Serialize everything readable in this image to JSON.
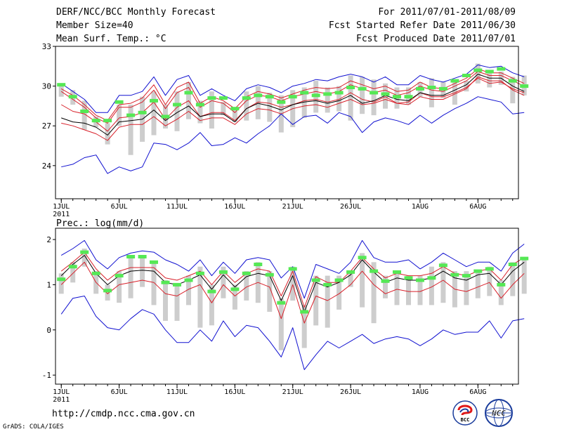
{
  "header": {
    "title": "DERF/NCC/BCC Monthly Forecast",
    "member_size": "Member Size=40",
    "variable": "Mean Surf. Temp.: °C",
    "for_range": "For 2011/07/01-2011/08/09",
    "fcst_started": "Fcst Started Refer Date 2011/06/30",
    "fcst_produced": "Fcst Produced Date 2011/07/01"
  },
  "footer": {
    "url": "http://cmdp.ncc.cma.gov.cn",
    "credit": "GrADS: COLA/IGES",
    "logo_left_text": "BCC",
    "logo_right_text": "NCC"
  },
  "colors": {
    "box": "#cdcdcd",
    "mean_marker": "#55e855",
    "ensemble_mean": "#000000",
    "inner_band": "#d8202a",
    "outer_band": "#1010d0"
  },
  "chart_data": [
    {
      "type": "line",
      "name": "temperature",
      "ylabel": "Mean Surf. Temp. (°C)",
      "ylim": [
        21.5,
        33
      ],
      "yticks": [
        24,
        27,
        30,
        33
      ],
      "xlim": [
        0.5,
        40.5
      ],
      "x_ticks": [
        {
          "day": 1,
          "label": "1JUL"
        },
        {
          "day": 6,
          "label": "6JUL"
        },
        {
          "day": 11,
          "label": "11JUL"
        },
        {
          "day": 16,
          "label": "16JUL"
        },
        {
          "day": 21,
          "label": "21JUL"
        },
        {
          "day": 26,
          "label": "26JUL"
        },
        {
          "day": 32,
          "label": "1AUG"
        },
        {
          "day": 37,
          "label": "6AUG"
        }
      ],
      "year_label": "2011",
      "series": [
        {
          "name": "blue-upper",
          "values": [
            30.2,
            29.6,
            29.0,
            28.0,
            28.0,
            29.3,
            29.3,
            29.6,
            30.7,
            29.3,
            30.5,
            30.8,
            29.3,
            29.8,
            29.3,
            28.9,
            29.8,
            30.1,
            29.9,
            29.5,
            30.0,
            30.2,
            30.5,
            30.4,
            30.7,
            30.9,
            30.7,
            30.3,
            30.7,
            30.1,
            30.1,
            30.8,
            30.5,
            30.3,
            30.6,
            30.9,
            31.6,
            31.4,
            31.5,
            31.0,
            30.7
          ]
        },
        {
          "name": "red-upper",
          "values": [
            29.8,
            29.3,
            28.6,
            27.8,
            27.4,
            28.6,
            28.7,
            29.1,
            30.1,
            28.6,
            29.9,
            30.3,
            28.7,
            29.2,
            28.9,
            28.3,
            29.2,
            29.6,
            29.4,
            29.1,
            29.4,
            29.7,
            29.9,
            29.8,
            29.9,
            30.4,
            30.1,
            29.8,
            30.0,
            29.6,
            29.7,
            30.3,
            29.9,
            29.8,
            30.2,
            30.6,
            31.3,
            31.0,
            31.0,
            30.6,
            30.2
          ]
        },
        {
          "name": "red-upper2",
          "values": [
            29.6,
            29.0,
            28.4,
            27.6,
            27.2,
            28.4,
            28.4,
            28.8,
            29.7,
            28.3,
            29.5,
            29.9,
            28.4,
            28.9,
            28.7,
            28.0,
            28.9,
            29.3,
            29.2,
            28.9,
            29.2,
            29.4,
            29.6,
            29.4,
            29.6,
            30.1,
            29.8,
            29.5,
            29.7,
            29.3,
            29.5,
            30.0,
            29.7,
            29.6,
            30.0,
            30.4,
            31.1,
            30.8,
            30.8,
            30.4,
            30.0
          ]
        },
        {
          "name": "red-lower",
          "values": [
            28.6,
            28.1,
            27.9,
            27.3,
            26.6,
            27.6,
            27.7,
            28.0,
            28.8,
            27.5,
            28.4,
            28.9,
            27.7,
            28.0,
            28.0,
            27.4,
            28.3,
            28.8,
            28.7,
            28.4,
            28.6,
            28.9,
            29.0,
            28.8,
            29.0,
            29.5,
            29.0,
            28.8,
            29.2,
            28.7,
            28.8,
            29.5,
            29.2,
            29.2,
            29.5,
            29.9,
            30.6,
            30.2,
            30.3,
            29.8,
            29.5
          ]
        },
        {
          "name": "black-mean",
          "values": [
            27.6,
            27.3,
            27.2,
            26.9,
            26.3,
            27.3,
            27.4,
            27.5,
            28.2,
            27.4,
            28.0,
            28.5,
            27.7,
            27.9,
            27.9,
            27.3,
            28.3,
            28.7,
            28.5,
            28.2,
            28.6,
            28.8,
            28.9,
            28.7,
            28.9,
            29.3,
            28.7,
            28.9,
            29.3,
            29.0,
            28.9,
            29.5,
            29.3,
            29.3,
            29.7,
            30.1,
            30.9,
            30.6,
            30.6,
            30.0,
            29.6
          ]
        },
        {
          "name": "red-lowest",
          "values": [
            27.2,
            27.0,
            26.7,
            26.4,
            25.9,
            26.9,
            27.1,
            27.1,
            27.7,
            27.0,
            27.5,
            28.1,
            27.4,
            27.6,
            27.6,
            27.1,
            27.9,
            28.3,
            28.2,
            27.9,
            28.3,
            28.5,
            28.6,
            28.4,
            28.7,
            29.0,
            28.6,
            28.7,
            29.0,
            28.7,
            28.6,
            29.2,
            29.0,
            29.0,
            29.4,
            29.8,
            30.7,
            30.4,
            30.4,
            29.7,
            29.3
          ]
        },
        {
          "name": "blue-lower",
          "values": [
            23.9,
            24.1,
            24.6,
            24.8,
            23.4,
            23.9,
            23.6,
            23.9,
            25.7,
            25.6,
            25.2,
            25.7,
            26.5,
            25.5,
            25.6,
            26.1,
            25.7,
            26.4,
            27.0,
            27.9,
            27.1,
            27.7,
            27.8,
            27.2,
            28.0,
            27.7,
            26.5,
            27.3,
            27.6,
            27.4,
            27.1,
            27.8,
            27.2,
            27.8,
            28.3,
            28.7,
            29.2,
            29.0,
            28.8,
            27.9,
            28.0
          ]
        }
      ],
      "boxes": {
        "top": [
          30.1,
          29.7,
          28.9,
          27.7,
          27.2,
          28.6,
          28.6,
          29.2,
          29.6,
          28.6,
          29.6,
          30.3,
          28.9,
          29.6,
          28.8,
          28.4,
          29.6,
          30.0,
          29.5,
          29.3,
          29.7,
          29.9,
          30.4,
          29.9,
          30.0,
          30.8,
          30.7,
          30.5,
          30.2,
          29.9,
          29.9,
          30.3,
          30.6,
          30.3,
          30.4,
          30.4,
          31.7,
          31.1,
          31.1,
          30.7,
          30.8
        ],
        "bottom": [
          29.2,
          28.6,
          26.7,
          26.9,
          25.6,
          27.0,
          24.8,
          25.8,
          26.3,
          26.8,
          26.6,
          27.5,
          27.2,
          26.8,
          27.8,
          27.3,
          27.4,
          27.5,
          27.3,
          26.5,
          26.9,
          27.6,
          28.0,
          28.0,
          28.1,
          27.4,
          27.9,
          27.8,
          28.3,
          28.3,
          28.6,
          29.2,
          28.4,
          29.1,
          28.6,
          29.6,
          30.2,
          29.9,
          30.1,
          28.7,
          29.3
        ]
      },
      "markers": [
        30.1,
        29.2,
        28.1,
        27.4,
        27.4,
        28.8,
        27.8,
        28.0,
        28.9,
        27.7,
        28.6,
        29.5,
        28.6,
        29.1,
        29.1,
        28.3,
        29.1,
        29.3,
        29.2,
        28.8,
        29.2,
        29.5,
        29.3,
        29.4,
        29.5,
        29.9,
        29.8,
        29.5,
        29.4,
        29.2,
        29.2,
        29.8,
        29.9,
        29.8,
        30.4,
        30.8,
        31.2,
        31.1,
        31.3,
        30.4,
        30.0
      ]
    },
    {
      "type": "line",
      "name": "precipitation",
      "ylabel": "Prec.: log(mm/d)",
      "ylim": [
        -1.2,
        2.25
      ],
      "yticks": [
        -1,
        0,
        1,
        2
      ],
      "xlim": [
        0.5,
        40.5
      ],
      "x_ticks": [
        {
          "day": 1,
          "label": "1JUL"
        },
        {
          "day": 6,
          "label": "6JUL"
        },
        {
          "day": 11,
          "label": "11JUL"
        },
        {
          "day": 16,
          "label": "16JUL"
        },
        {
          "day": 21,
          "label": "21JUL"
        },
        {
          "day": 26,
          "label": "26JUL"
        },
        {
          "day": 32,
          "label": "1AUG"
        },
        {
          "day": 37,
          "label": "6AUG"
        }
      ],
      "year_label": "2011",
      "series": [
        {
          "name": "blue-upper",
          "values": [
            1.65,
            1.8,
            1.98,
            1.55,
            1.35,
            1.6,
            1.7,
            1.75,
            1.72,
            1.55,
            1.45,
            1.3,
            1.55,
            1.2,
            1.5,
            1.25,
            1.55,
            1.6,
            1.55,
            1.15,
            1.4,
            0.7,
            1.45,
            1.35,
            1.25,
            1.5,
            1.98,
            1.6,
            1.5,
            1.5,
            1.55,
            1.35,
            1.5,
            1.7,
            1.55,
            1.4,
            1.5,
            1.5,
            1.3,
            1.7,
            1.9
          ]
        },
        {
          "name": "red-upper",
          "values": [
            1.3,
            1.5,
            1.72,
            1.35,
            1.1,
            1.3,
            1.38,
            1.38,
            1.38,
            1.15,
            1.1,
            1.2,
            1.3,
            1.0,
            1.3,
            1.05,
            1.25,
            1.35,
            1.3,
            0.75,
            1.3,
            0.5,
            1.18,
            1.05,
            1.05,
            1.3,
            1.6,
            1.35,
            1.15,
            1.25,
            1.2,
            1.2,
            1.25,
            1.4,
            1.25,
            1.2,
            1.3,
            1.35,
            1.1,
            1.45,
            1.6
          ]
        },
        {
          "name": "black-mean",
          "values": [
            1.2,
            1.45,
            1.65,
            1.25,
            1.0,
            1.2,
            1.3,
            1.32,
            1.3,
            1.05,
            1.0,
            1.1,
            1.22,
            0.9,
            1.22,
            0.95,
            1.18,
            1.25,
            1.2,
            0.65,
            1.2,
            0.4,
            1.05,
            0.95,
            1.05,
            1.22,
            1.55,
            1.28,
            1.05,
            1.15,
            1.1,
            1.1,
            1.15,
            1.3,
            1.15,
            1.1,
            1.22,
            1.25,
            1.0,
            1.3,
            1.5
          ]
        },
        {
          "name": "red-lower",
          "values": [
            1.0,
            1.25,
            1.5,
            1.05,
            0.8,
            1.0,
            1.05,
            1.1,
            1.05,
            0.8,
            0.75,
            0.9,
            1.0,
            0.6,
            1.0,
            0.75,
            0.95,
            1.05,
            0.95,
            0.25,
            1.0,
            0.15,
            0.75,
            0.65,
            0.8,
            1.0,
            1.3,
            1.0,
            0.8,
            0.9,
            0.85,
            0.85,
            0.95,
            1.1,
            0.9,
            0.85,
            0.95,
            1.05,
            0.7,
            1.0,
            1.25
          ]
        },
        {
          "name": "blue-lower",
          "values": [
            0.35,
            0.7,
            0.75,
            0.3,
            0.05,
            0.0,
            0.25,
            0.45,
            0.35,
            0.0,
            -0.28,
            -0.28,
            0.0,
            -0.25,
            0.2,
            -0.15,
            0.1,
            0.05,
            -0.25,
            -0.6,
            0.05,
            -0.88,
            -0.55,
            -0.25,
            -0.4,
            -0.25,
            -0.1,
            -0.3,
            -0.2,
            -0.15,
            -0.2,
            -0.35,
            -0.2,
            0.0,
            -0.1,
            -0.05,
            -0.05,
            0.2,
            -0.18,
            0.2,
            0.25
          ]
        }
      ],
      "boxes": {
        "top": [
          1.25,
          1.5,
          1.8,
          1.3,
          1.0,
          1.3,
          1.6,
          1.6,
          1.5,
          1.1,
          1.0,
          1.2,
          1.4,
          1.0,
          1.4,
          1.0,
          1.3,
          1.5,
          1.3,
          0.7,
          1.4,
          0.55,
          1.2,
          1.2,
          1.2,
          1.3,
          1.7,
          1.5,
          1.2,
          1.3,
          1.2,
          1.2,
          1.4,
          1.5,
          1.3,
          1.3,
          1.3,
          1.4,
          1.1,
          1.5,
          1.6
        ],
        "bottom": [
          0.8,
          1.05,
          1.4,
          0.8,
          0.65,
          0.6,
          0.7,
          0.95,
          0.55,
          0.2,
          0.2,
          0.55,
          0.05,
          0.1,
          0.7,
          0.45,
          0.65,
          0.6,
          0.4,
          -0.45,
          0.65,
          -0.4,
          0.1,
          0.05,
          0.45,
          0.95,
          0.5,
          0.15,
          0.7,
          0.55,
          0.55,
          0.55,
          0.55,
          0.6,
          0.5,
          0.55,
          0.7,
          0.75,
          0.55,
          0.75,
          0.8
        ]
      },
      "markers": [
        1.12,
        1.4,
        1.72,
        1.25,
        0.87,
        1.2,
        1.62,
        1.62,
        1.5,
        1.05,
        1.0,
        1.1,
        1.25,
        0.85,
        1.28,
        0.9,
        1.25,
        1.45,
        1.22,
        0.6,
        1.35,
        0.4,
        1.1,
        1.0,
        1.1,
        1.28,
        1.6,
        1.3,
        1.08,
        1.28,
        1.15,
        1.1,
        1.15,
        1.43,
        1.22,
        1.2,
        1.3,
        1.35,
        1.0,
        1.45,
        1.58
      ]
    }
  ]
}
